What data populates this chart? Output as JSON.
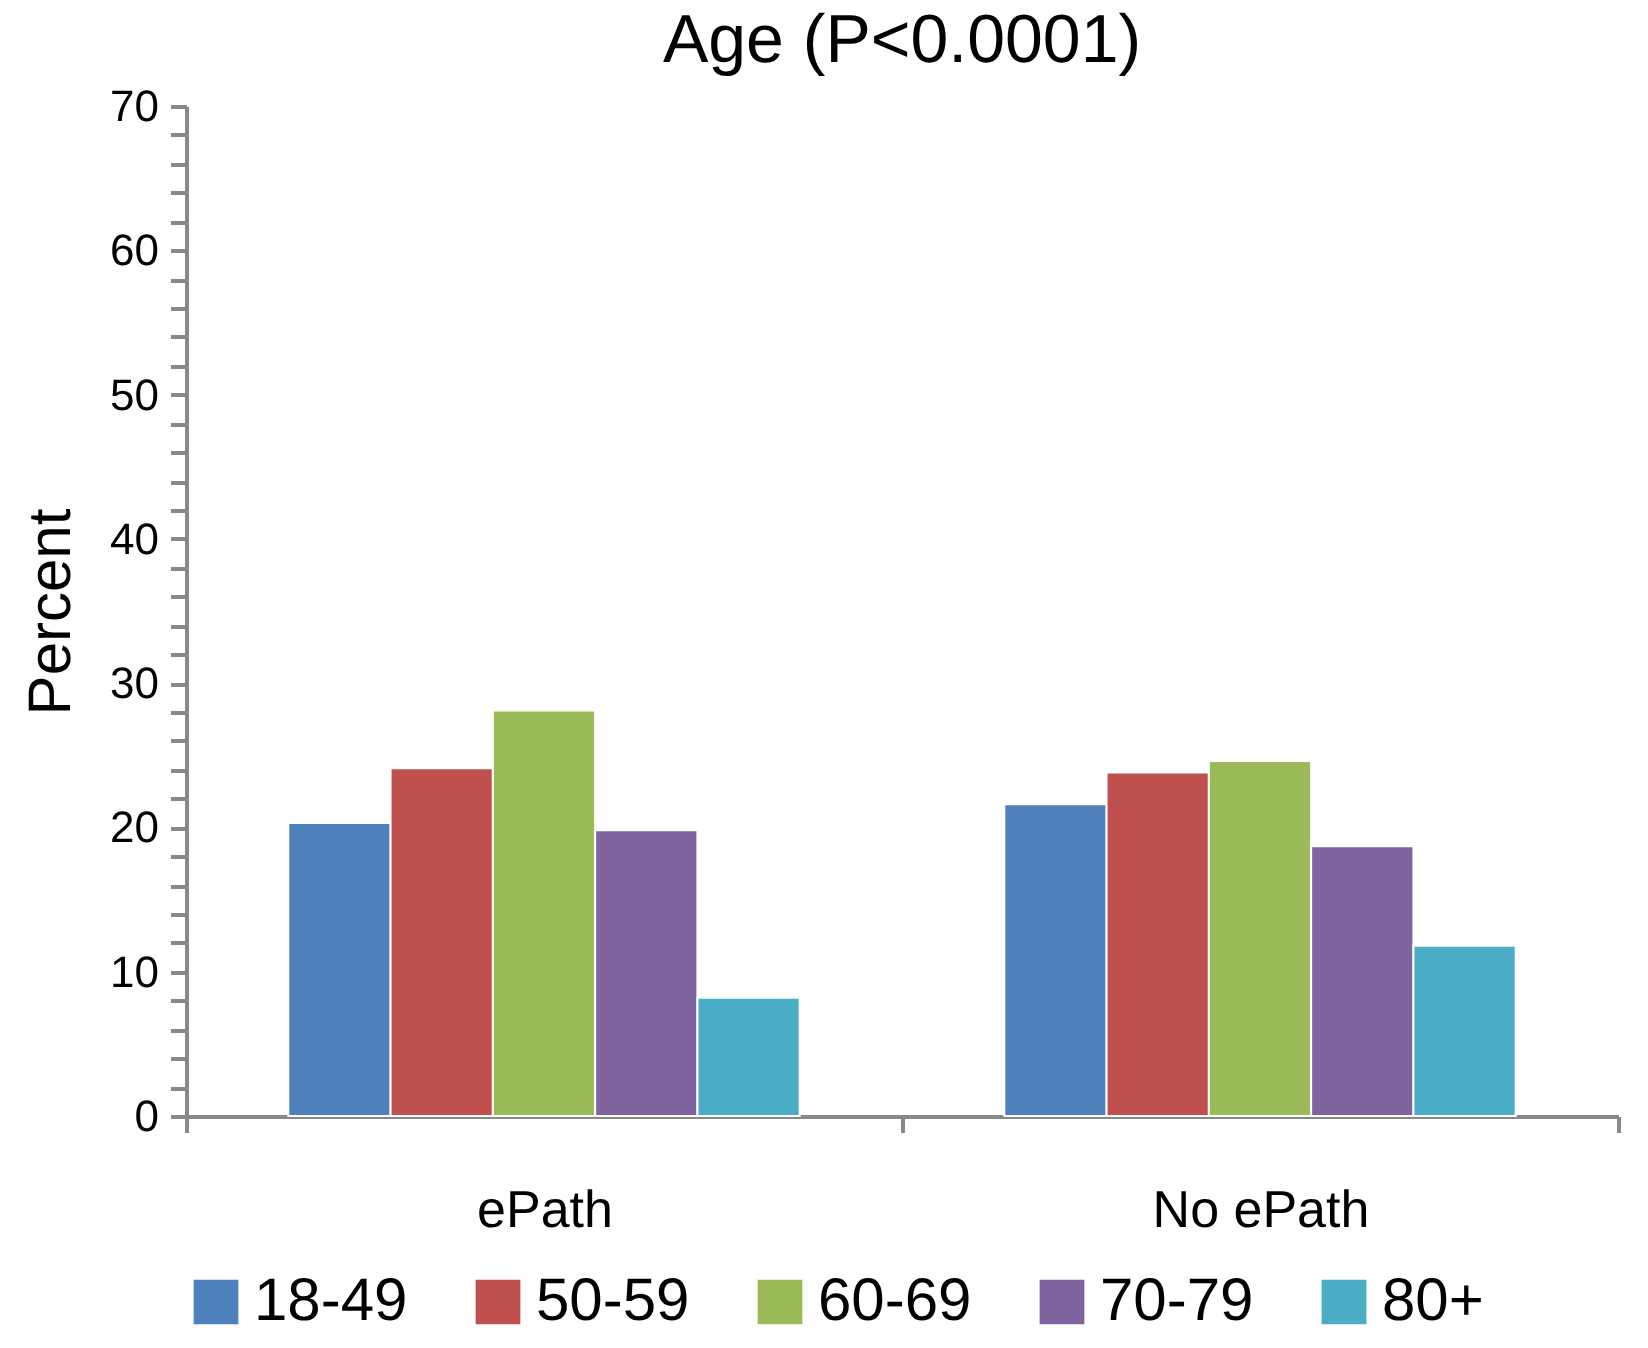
{
  "chart_data": {
    "type": "bar",
    "title": "Age (P<0.0001)",
    "ylabel": "Percent",
    "categories": [
      "ePath",
      "No ePath"
    ],
    "series": [
      {
        "name": "18-49",
        "color": "#4f81bd",
        "values": [
          20.3,
          21.6
        ]
      },
      {
        "name": "50-59",
        "color": "#c0504d",
        "values": [
          24.1,
          23.8
        ]
      },
      {
        "name": "60-69",
        "color": "#9bbb59",
        "values": [
          28.1,
          24.6
        ]
      },
      {
        "name": "70-79",
        "color": "#8064a2",
        "values": [
          19.8,
          18.7
        ]
      },
      {
        "name": "80+",
        "color": "#4bacc6",
        "values": [
          8.2,
          11.8
        ]
      }
    ],
    "ylim": [
      0,
      70
    ],
    "yticks": [
      0,
      {
        "value": 2,
        "label": null
      },
      {
        "value": 4,
        "label": null
      },
      {
        "value": 6,
        "label": null
      },
      {
        "value": 8,
        "label": null
      },
      10,
      {
        "value": 12,
        "label": null
      },
      {
        "value": 14,
        "label": null
      },
      {
        "value": 16,
        "label": null
      },
      {
        "value": 18,
        "label": null
      },
      20,
      {
        "value": 22,
        "label": null
      },
      {
        "value": 24,
        "label": null
      },
      {
        "value": 26,
        "label": null
      },
      {
        "value": 28,
        "label": null
      },
      30,
      {
        "value": 32,
        "label": null
      },
      {
        "value": 34,
        "label": null
      },
      {
        "value": 36,
        "label": null
      },
      {
        "value": 38,
        "label": null
      },
      40,
      {
        "value": 42,
        "label": null
      },
      {
        "value": 44,
        "label": null
      },
      {
        "value": 46,
        "label": null
      },
      {
        "value": 48,
        "label": null
      },
      50,
      {
        "value": 52,
        "label": null
      },
      {
        "value": 54,
        "label": null
      },
      {
        "value": 56,
        "label": null
      },
      {
        "value": 58,
        "label": null
      },
      60,
      {
        "value": 62,
        "label": null
      },
      {
        "value": 64,
        "label": null
      },
      {
        "value": 66,
        "label": null
      },
      {
        "value": 68,
        "label": null
      },
      70
    ],
    "grid": false,
    "legend": "bottom"
  }
}
